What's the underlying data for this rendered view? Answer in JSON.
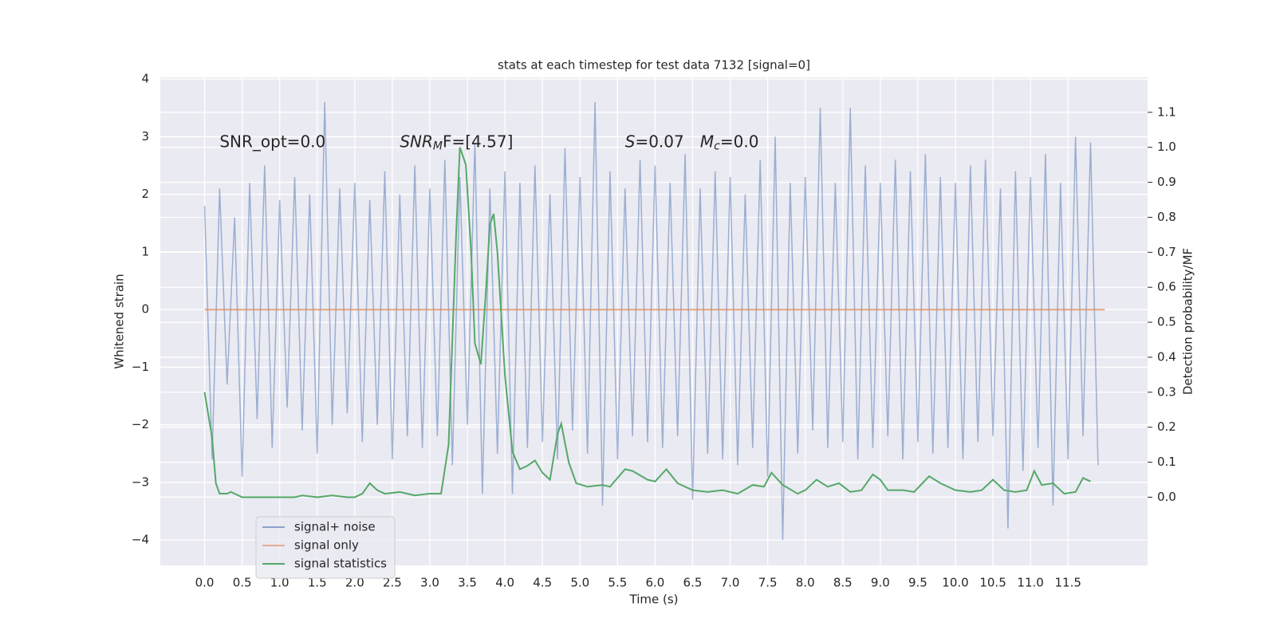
{
  "chart_data": {
    "type": "line",
    "title": "stats at each timestep for test data 7132 [signal=0]",
    "x_label": "Time (s)",
    "y_label": "Whitened strain",
    "y2_label": "Detection probability/MF",
    "xlim": [
      -0.59,
      12.56
    ],
    "ylim": [
      -4.44,
      4.03
    ],
    "y2lim": [
      -0.195,
      1.2
    ],
    "grid": true,
    "legend_loc": "lower left",
    "xticks": [
      {
        "value": 0,
        "label": "0.0"
      },
      0.5,
      {
        "value": 1,
        "label": "1.0"
      },
      1.5,
      {
        "value": 2,
        "label": "2.0"
      },
      2.5,
      {
        "value": 3,
        "label": "3.0"
      },
      3.5,
      {
        "value": 4,
        "label": "4.0"
      },
      4.5,
      {
        "value": 5,
        "label": "5.0"
      },
      5.5,
      {
        "value": 6,
        "label": "6.0"
      },
      6.5,
      {
        "value": 7,
        "label": "7.0"
      },
      7.5,
      {
        "value": 8,
        "label": "8.0"
      },
      8.5,
      {
        "value": 9,
        "label": "9.0"
      },
      9.5,
      {
        "value": 10,
        "label": "10.0"
      },
      10.5,
      {
        "value": 11,
        "label": "11.0"
      },
      11.5
    ],
    "yticks": [
      {
        "value": -4,
        "label": "−4"
      },
      {
        "value": -3,
        "label": "−3"
      },
      {
        "value": -2,
        "label": "−2"
      },
      {
        "value": -1,
        "label": "−1"
      },
      0,
      1,
      2,
      3,
      4
    ],
    "y2ticks": [
      {
        "value": 0,
        "label": "0.0"
      },
      0.1,
      0.2,
      0.3,
      0.4,
      0.5,
      0.6,
      0.7,
      0.8,
      0.9,
      {
        "value": 1,
        "label": "1.0"
      },
      1.1
    ],
    "annotations": [
      {
        "parts": [
          {
            "text": "SNR_opt=0.0"
          }
        ]
      },
      {
        "parts": [
          {
            "text": "SNR",
            "style": "italic"
          },
          {
            "text": "M",
            "style": "sub"
          },
          {
            "text": "F=[4.57]"
          }
        ]
      },
      {
        "parts": [
          {
            "text": "S",
            "style": "italic"
          },
          {
            "text": "=0.07"
          }
        ]
      },
      {
        "parts": [
          {
            "text": "M",
            "style": "italic"
          },
          {
            "text": "c",
            "style": "sub"
          },
          {
            "text": "=0.0"
          }
        ]
      }
    ],
    "series": [
      {
        "name": "signal+ noise",
        "color": "#4c72b0",
        "x": [
          0,
          0.1,
          0.2,
          0.3,
          0.4,
          0.5,
          0.6,
          0.7,
          0.8,
          0.9,
          1,
          1.1,
          1.2,
          1.3,
          1.4,
          1.5,
          1.6,
          1.7,
          1.8,
          1.9,
          2,
          2.1,
          2.2,
          2.3,
          2.4,
          2.5,
          2.6,
          2.7,
          2.8,
          2.9,
          3,
          3.1,
          3.2,
          3.3,
          3.4,
          3.5,
          3.6,
          3.7,
          3.8,
          3.9,
          4,
          4.1,
          4.2,
          4.3,
          4.4,
          4.5,
          4.6,
          4.7,
          4.8,
          4.9,
          5,
          5.1,
          5.2,
          5.3,
          5.4,
          5.5,
          5.6,
          5.7,
          5.8,
          5.9,
          6,
          6.1,
          6.2,
          6.3,
          6.4,
          6.5,
          6.6,
          6.7,
          6.8,
          6.9,
          7,
          7.1,
          7.2,
          7.3,
          7.4,
          7.5,
          7.6,
          7.7,
          7.8,
          7.9,
          8,
          8.1,
          8.2,
          8.3,
          8.4,
          8.5,
          8.6,
          8.7,
          8.8,
          8.9,
          9,
          9.1,
          9.2,
          9.3,
          9.4,
          9.5,
          9.6,
          9.7,
          9.8,
          9.9,
          10,
          10.1,
          10.2,
          10.3,
          10.4,
          10.5,
          10.6,
          10.7,
          10.8,
          10.9,
          11,
          11.1,
          11.2,
          11.3,
          11.4,
          11.5,
          11.6,
          11.7,
          11.8,
          11.9
        ],
        "values": [
          1.8,
          -2.6,
          2.1,
          -1.3,
          1.6,
          -2.9,
          2.2,
          -1.9,
          2.5,
          -2.4,
          1.9,
          -1.7,
          2.3,
          -2.1,
          2.0,
          -2.5,
          3.6,
          -2.0,
          2.1,
          -1.8,
          2.2,
          -2.3,
          1.9,
          -2.0,
          2.4,
          -2.6,
          2.0,
          -2.2,
          2.5,
          -2.4,
          2.1,
          -2.2,
          2.6,
          -2.7,
          2.3,
          -2.0,
          2.9,
          -3.2,
          2.1,
          -2.5,
          2.4,
          -3.2,
          2.2,
          -2.4,
          2.5,
          -2.3,
          2.0,
          -2.6,
          2.8,
          -2.1,
          2.3,
          -2.5,
          3.6,
          -3.4,
          2.4,
          -2.6,
          2.1,
          -2.2,
          2.6,
          -2.3,
          2.5,
          -2.4,
          2.2,
          -2.2,
          2.7,
          -3.3,
          2.1,
          -2.5,
          2.4,
          -2.6,
          2.3,
          -2.7,
          2.0,
          -2.4,
          2.6,
          -2.9,
          3.0,
          -4.0,
          2.2,
          -2.5,
          2.3,
          -2.1,
          3.5,
          -2.4,
          2.2,
          -2.3,
          3.5,
          -2.6,
          2.5,
          -2.4,
          2.2,
          -2.2,
          2.6,
          -2.6,
          2.4,
          -2.3,
          2.7,
          -2.5,
          2.3,
          -2.4,
          2.2,
          -2.6,
          2.5,
          -2.3,
          2.6,
          -2.2,
          2.1,
          -3.8,
          2.4,
          -2.8,
          2.3,
          -2.4,
          2.7,
          -3.4,
          2.2,
          -2.6,
          3.0,
          -2.2,
          2.9,
          -2.7
        ]
      },
      {
        "name": "signal only",
        "color": "#dd8452",
        "x": [
          0,
          11.99
        ],
        "values": [
          0,
          0
        ]
      },
      {
        "name": "signal statistics",
        "color": "#55a868",
        "axis": "y2",
        "x": [
          0,
          0.1,
          0.15,
          0.2,
          0.3,
          0.35,
          0.5,
          0.7,
          1.0,
          1.2,
          1.3,
          1.5,
          1.7,
          1.9,
          2.0,
          2.1,
          2.2,
          2.3,
          2.4,
          2.6,
          2.8,
          3.0,
          3.15,
          3.25,
          3.35,
          3.4,
          3.48,
          3.55,
          3.6,
          3.68,
          3.75,
          3.8,
          3.85,
          3.9,
          4.0,
          4.1,
          4.2,
          4.3,
          4.4,
          4.5,
          4.6,
          4.7,
          4.75,
          4.85,
          4.95,
          5.1,
          5.3,
          5.4,
          5.6,
          5.7,
          5.9,
          6.0,
          6.15,
          6.3,
          6.5,
          6.7,
          6.9,
          7.1,
          7.3,
          7.45,
          7.55,
          7.7,
          7.9,
          8.0,
          8.15,
          8.3,
          8.45,
          8.6,
          8.75,
          8.9,
          9.0,
          9.1,
          9.3,
          9.45,
          9.65,
          9.8,
          10.0,
          10.2,
          10.35,
          10.5,
          10.65,
          10.8,
          10.95,
          11.05,
          11.15,
          11.3,
          11.45,
          11.6,
          11.7,
          11.8
        ],
        "values": [
          0.3,
          0.17,
          0.04,
          0.01,
          0.01,
          0.015,
          0.0,
          0.0,
          0.0,
          0.0,
          0.005,
          0.0,
          0.005,
          0.0,
          0.0,
          0.01,
          0.04,
          0.02,
          0.01,
          0.015,
          0.005,
          0.01,
          0.01,
          0.15,
          0.75,
          1.0,
          0.95,
          0.7,
          0.44,
          0.38,
          0.6,
          0.78,
          0.81,
          0.7,
          0.35,
          0.13,
          0.08,
          0.09,
          0.105,
          0.07,
          0.05,
          0.18,
          0.21,
          0.1,
          0.04,
          0.03,
          0.035,
          0.03,
          0.08,
          0.075,
          0.05,
          0.045,
          0.08,
          0.04,
          0.02,
          0.015,
          0.02,
          0.01,
          0.035,
          0.03,
          0.07,
          0.035,
          0.01,
          0.02,
          0.05,
          0.03,
          0.04,
          0.015,
          0.02,
          0.065,
          0.05,
          0.02,
          0.02,
          0.015,
          0.06,
          0.04,
          0.02,
          0.015,
          0.02,
          0.05,
          0.02,
          0.015,
          0.02,
          0.075,
          0.035,
          0.04,
          0.01,
          0.015,
          0.055,
          0.045
        ]
      }
    ]
  }
}
